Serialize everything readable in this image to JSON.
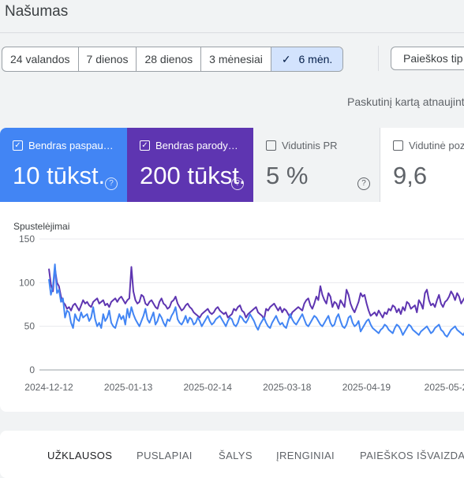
{
  "header": {
    "title": "Našumas"
  },
  "date_ranges": {
    "options": [
      "24 valandos",
      "7 dienos",
      "28 dienos",
      "3 mėnesiai",
      "6 mėn."
    ],
    "selected_index": 4,
    "check_icon": "check-icon"
  },
  "search_type_button": "Paieškos tip",
  "last_updated": "Paskutinį kartą atnaujinta",
  "metrics": [
    {
      "label": "Bendras paspau…",
      "value": "10 tūkst.",
      "checked": true,
      "color": "#4285f4"
    },
    {
      "label": "Bendras parody…",
      "value": "200 tūkst.",
      "checked": true,
      "color": "#5e35b1"
    },
    {
      "label": "Vidutinis PR",
      "value": "5 %",
      "checked": false
    },
    {
      "label": "Vidutinė poz",
      "value": "9,6",
      "checked": false
    }
  ],
  "chart_data": {
    "type": "line",
    "ylabel": "Spustelėjimai",
    "ylim": [
      0,
      150
    ],
    "yticks": [
      0,
      50,
      100,
      150
    ],
    "xticks": [
      "2024-12-12",
      "2025-01-13",
      "2025-02-14",
      "2025-03-18",
      "2025-04-19",
      "2025-05-2"
    ],
    "grid": true,
    "series": [
      {
        "color": "#5e35b1",
        "values": [
          116,
          98,
          90,
          117,
          100,
          96,
          84,
          78,
          75,
          70,
          72,
          68,
          74,
          76,
          72,
          68,
          74,
          80,
          76,
          78,
          74,
          72,
          78,
          80,
          82,
          76,
          78,
          80,
          74,
          76,
          72,
          78,
          80,
          82,
          78,
          82,
          84,
          80,
          76,
          80,
          82,
          118,
          90,
          80,
          76,
          78,
          86,
          84,
          76,
          74,
          78,
          80,
          76,
          72,
          70,
          78,
          82,
          76,
          74,
          70,
          72,
          78,
          80,
          84,
          76,
          72,
          68,
          70,
          74,
          76,
          72,
          70,
          66,
          64,
          62,
          60,
          64,
          66,
          68,
          70,
          66,
          64,
          66,
          70,
          72,
          68,
          66,
          64,
          66,
          60,
          62,
          64,
          70,
          68,
          72,
          74,
          68,
          66,
          60,
          64,
          66,
          68,
          70,
          72,
          66,
          64,
          62,
          58,
          70,
          68,
          72,
          74,
          76,
          72,
          68,
          72,
          66,
          70,
          68,
          64,
          60,
          66,
          68,
          70,
          72,
          70,
          68,
          76,
          80,
          82,
          74,
          70,
          76,
          84,
          80,
          96,
          86,
          80,
          76,
          88,
          84,
          72,
          78,
          76,
          70,
          80,
          76,
          72,
          92,
          86,
          76,
          70,
          66,
          72,
          78,
          88,
          84,
          86,
          76,
          68,
          62,
          64,
          66,
          62,
          68,
          64,
          60,
          66,
          64,
          70,
          68,
          74,
          72,
          66,
          70,
          64,
          72,
          68,
          78,
          76,
          70,
          72,
          74,
          66,
          80,
          76,
          70,
          88,
          92,
          80,
          74,
          76,
          72,
          80,
          86,
          76,
          72,
          78,
          80,
          84,
          90,
          86,
          80,
          88,
          84,
          76,
          80,
          84,
          78
        ]
      },
      {
        "color": "#4285f4",
        "values": [
          104,
          86,
          96,
          121,
          88,
          92,
          78,
          82,
          60,
          68,
          66,
          54,
          48,
          64,
          58,
          56,
          66,
          60,
          62,
          64,
          56,
          60,
          72,
          58,
          50,
          54,
          48,
          64,
          56,
          60,
          68,
          54,
          50,
          48,
          56,
          64,
          58,
          62,
          52,
          70,
          60,
          72,
          64,
          58,
          54,
          50,
          56,
          62,
          70,
          58,
          54,
          60,
          66,
          52,
          56,
          64,
          60,
          54,
          50,
          58,
          56,
          62,
          66,
          72,
          58,
          54,
          52,
          56,
          62,
          54,
          60,
          58,
          52,
          54,
          60,
          56,
          50,
          54,
          58,
          62,
          56,
          52,
          54,
          58,
          60,
          62,
          58,
          54,
          50,
          56,
          60,
          58,
          52,
          50,
          54,
          62,
          60,
          56,
          54,
          58,
          64,
          60,
          56,
          50,
          46,
          52,
          56,
          60,
          54,
          50,
          48,
          54,
          58,
          62,
          56,
          52,
          54,
          50,
          48,
          56,
          64,
          58,
          54,
          52,
          56,
          60,
          64,
          58,
          52,
          50,
          54,
          58,
          62,
          60,
          56,
          52,
          50,
          54,
          58,
          62,
          54,
          50,
          52,
          60,
          64,
          56,
          50,
          48,
          52,
          60,
          62,
          54,
          50,
          52,
          56,
          44,
          48,
          52,
          56,
          58,
          52,
          48,
          46,
          44,
          42,
          46,
          48,
          52,
          50,
          46,
          44,
          42,
          48,
          52,
          50,
          46,
          40,
          44,
          48,
          52,
          50,
          46,
          44,
          42,
          40,
          44,
          46,
          48,
          50,
          46,
          42,
          44,
          48,
          50,
          52,
          46,
          44,
          40,
          38,
          42,
          46,
          48,
          50,
          46,
          44,
          42,
          40,
          44,
          52,
          60,
          54,
          48
        ]
      }
    ]
  },
  "tabs": [
    "UŽKLAUSOS",
    "PUSLAPIAI",
    "ŠALYS",
    "ĮRENGINIAI",
    "PAIEŠKOS IŠVAIZDA"
  ]
}
